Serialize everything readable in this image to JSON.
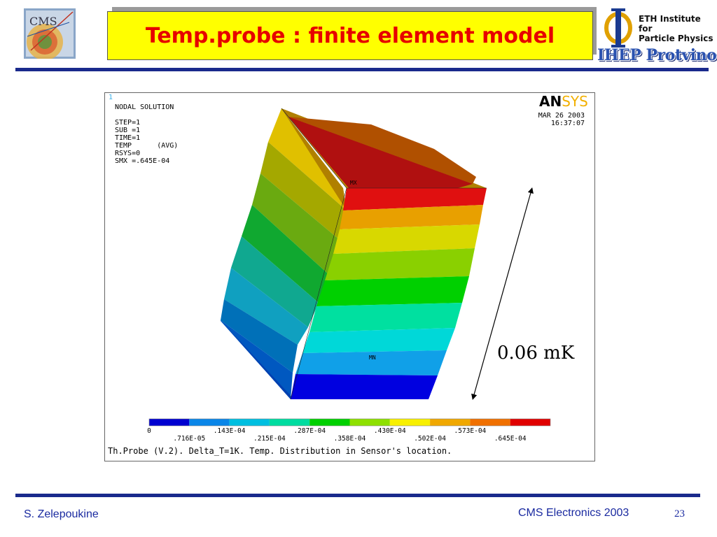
{
  "header": {
    "title": "Temp.probe : finite element model",
    "logo_left": "CMS",
    "eth_lines": [
      "ETH Institute for",
      "Particle Physics"
    ],
    "ihep": "IHEP Protvino"
  },
  "figure": {
    "frame_number": "1",
    "info_lines": [
      "NODAL SOLUTION",
      "",
      "STEP=1",
      "SUB =1",
      "TIME=1",
      "TEMP      (AVG)",
      "RSYS=0",
      "SMX =.645E-04"
    ],
    "ansys_bold": "AN",
    "ansys_light": "SYS",
    "date": "MAR 26 2003",
    "time": "16:37:07",
    "max_label": "MX",
    "min_label": "MN",
    "legend_top": [
      "0",
      ".143E-04",
      ".287E-04",
      ".430E-04",
      ".573E-04"
    ],
    "legend_bottom": [
      ".716E-05",
      ".215E-04",
      ".358E-04",
      ".502E-04",
      ".645E-04"
    ],
    "legend_colors": [
      "#0000d0",
      "#0a86e8",
      "#00bfe0",
      "#00dca0",
      "#00d000",
      "#8ee000",
      "#f8f000",
      "#f0a800",
      "#f07000",
      "#e00000"
    ],
    "caption": "Th.Probe (V.2). Delta_T=1K. Temp. Distribution in Sensor's location."
  },
  "annotation": {
    "label": "0.06 mK"
  },
  "footer": {
    "author": "S. Zelepoukine",
    "conference": "CMS Electronics 2003",
    "page": "23"
  }
}
